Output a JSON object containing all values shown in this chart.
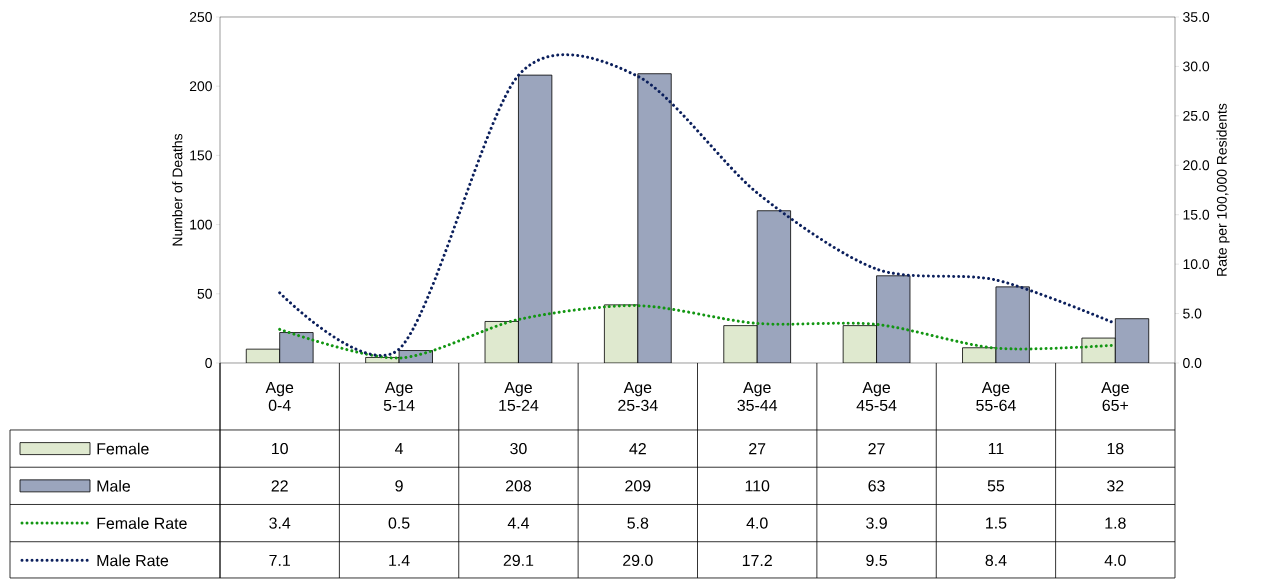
{
  "chart_data": {
    "type": "bar",
    "categories": [
      "Age 0-4",
      "Age 5-14",
      "Age 15-24",
      "Age 25-34",
      "Age 35-44",
      "Age 45-54",
      "Age 55-64",
      "Age 65+"
    ],
    "ylabel": "Number of Deaths",
    "y2label": "Rate per 100,000 Residents",
    "ylim": [
      0,
      250
    ],
    "yticks": [
      0,
      50,
      100,
      150,
      200,
      250
    ],
    "y2lim": [
      0,
      35
    ],
    "y2ticks": [
      {
        "value": 0,
        "label": "0.0"
      },
      {
        "value": 5,
        "label": "5.0"
      },
      {
        "value": 10,
        "label": "10.0"
      },
      {
        "value": 15,
        "label": "15.0"
      },
      {
        "value": 20,
        "label": "20.0"
      },
      {
        "value": 25,
        "label": "25.0"
      },
      {
        "value": 30,
        "label": "30.0"
      },
      {
        "value": 35,
        "label": "35.0"
      }
    ],
    "legend": "bottom left",
    "series": [
      {
        "name": "Female",
        "type": "bar",
        "color": "#dfe9cf",
        "values": [
          10,
          4,
          30,
          42,
          27,
          27,
          11,
          18
        ],
        "value_labels": [
          "10",
          "4",
          "30",
          "42",
          "27",
          "27",
          "11",
          "18"
        ]
      },
      {
        "name": "Male",
        "type": "bar",
        "color": "#9ba5bd",
        "values": [
          22,
          9,
          208,
          209,
          110,
          63,
          55,
          32
        ],
        "value_labels": [
          "22",
          "9",
          "208",
          "209",
          "110",
          "63",
          "55",
          "32"
        ]
      },
      {
        "name": "Female Rate",
        "type": "line",
        "axis": "y2",
        "line_style": "dotted",
        "color": "#129612",
        "values": [
          3.4,
          0.5,
          4.4,
          5.8,
          4.0,
          3.9,
          1.5,
          1.8
        ],
        "value_labels": [
          "3.4",
          "0.5",
          "4.4",
          "5.8",
          "4.0",
          "3.9",
          "1.5",
          "1.8"
        ]
      },
      {
        "name": "Male Rate",
        "type": "line",
        "axis": "y2",
        "line_style": "dotted",
        "color": "#0b1f5c",
        "values": [
          7.1,
          1.4,
          29.1,
          29.0,
          17.2,
          9.5,
          8.4,
          4.0
        ],
        "value_labels": [
          "7.1",
          "1.4",
          "29.1",
          "29.0",
          "17.2",
          "9.5",
          "8.4",
          "4.0"
        ]
      }
    ]
  }
}
